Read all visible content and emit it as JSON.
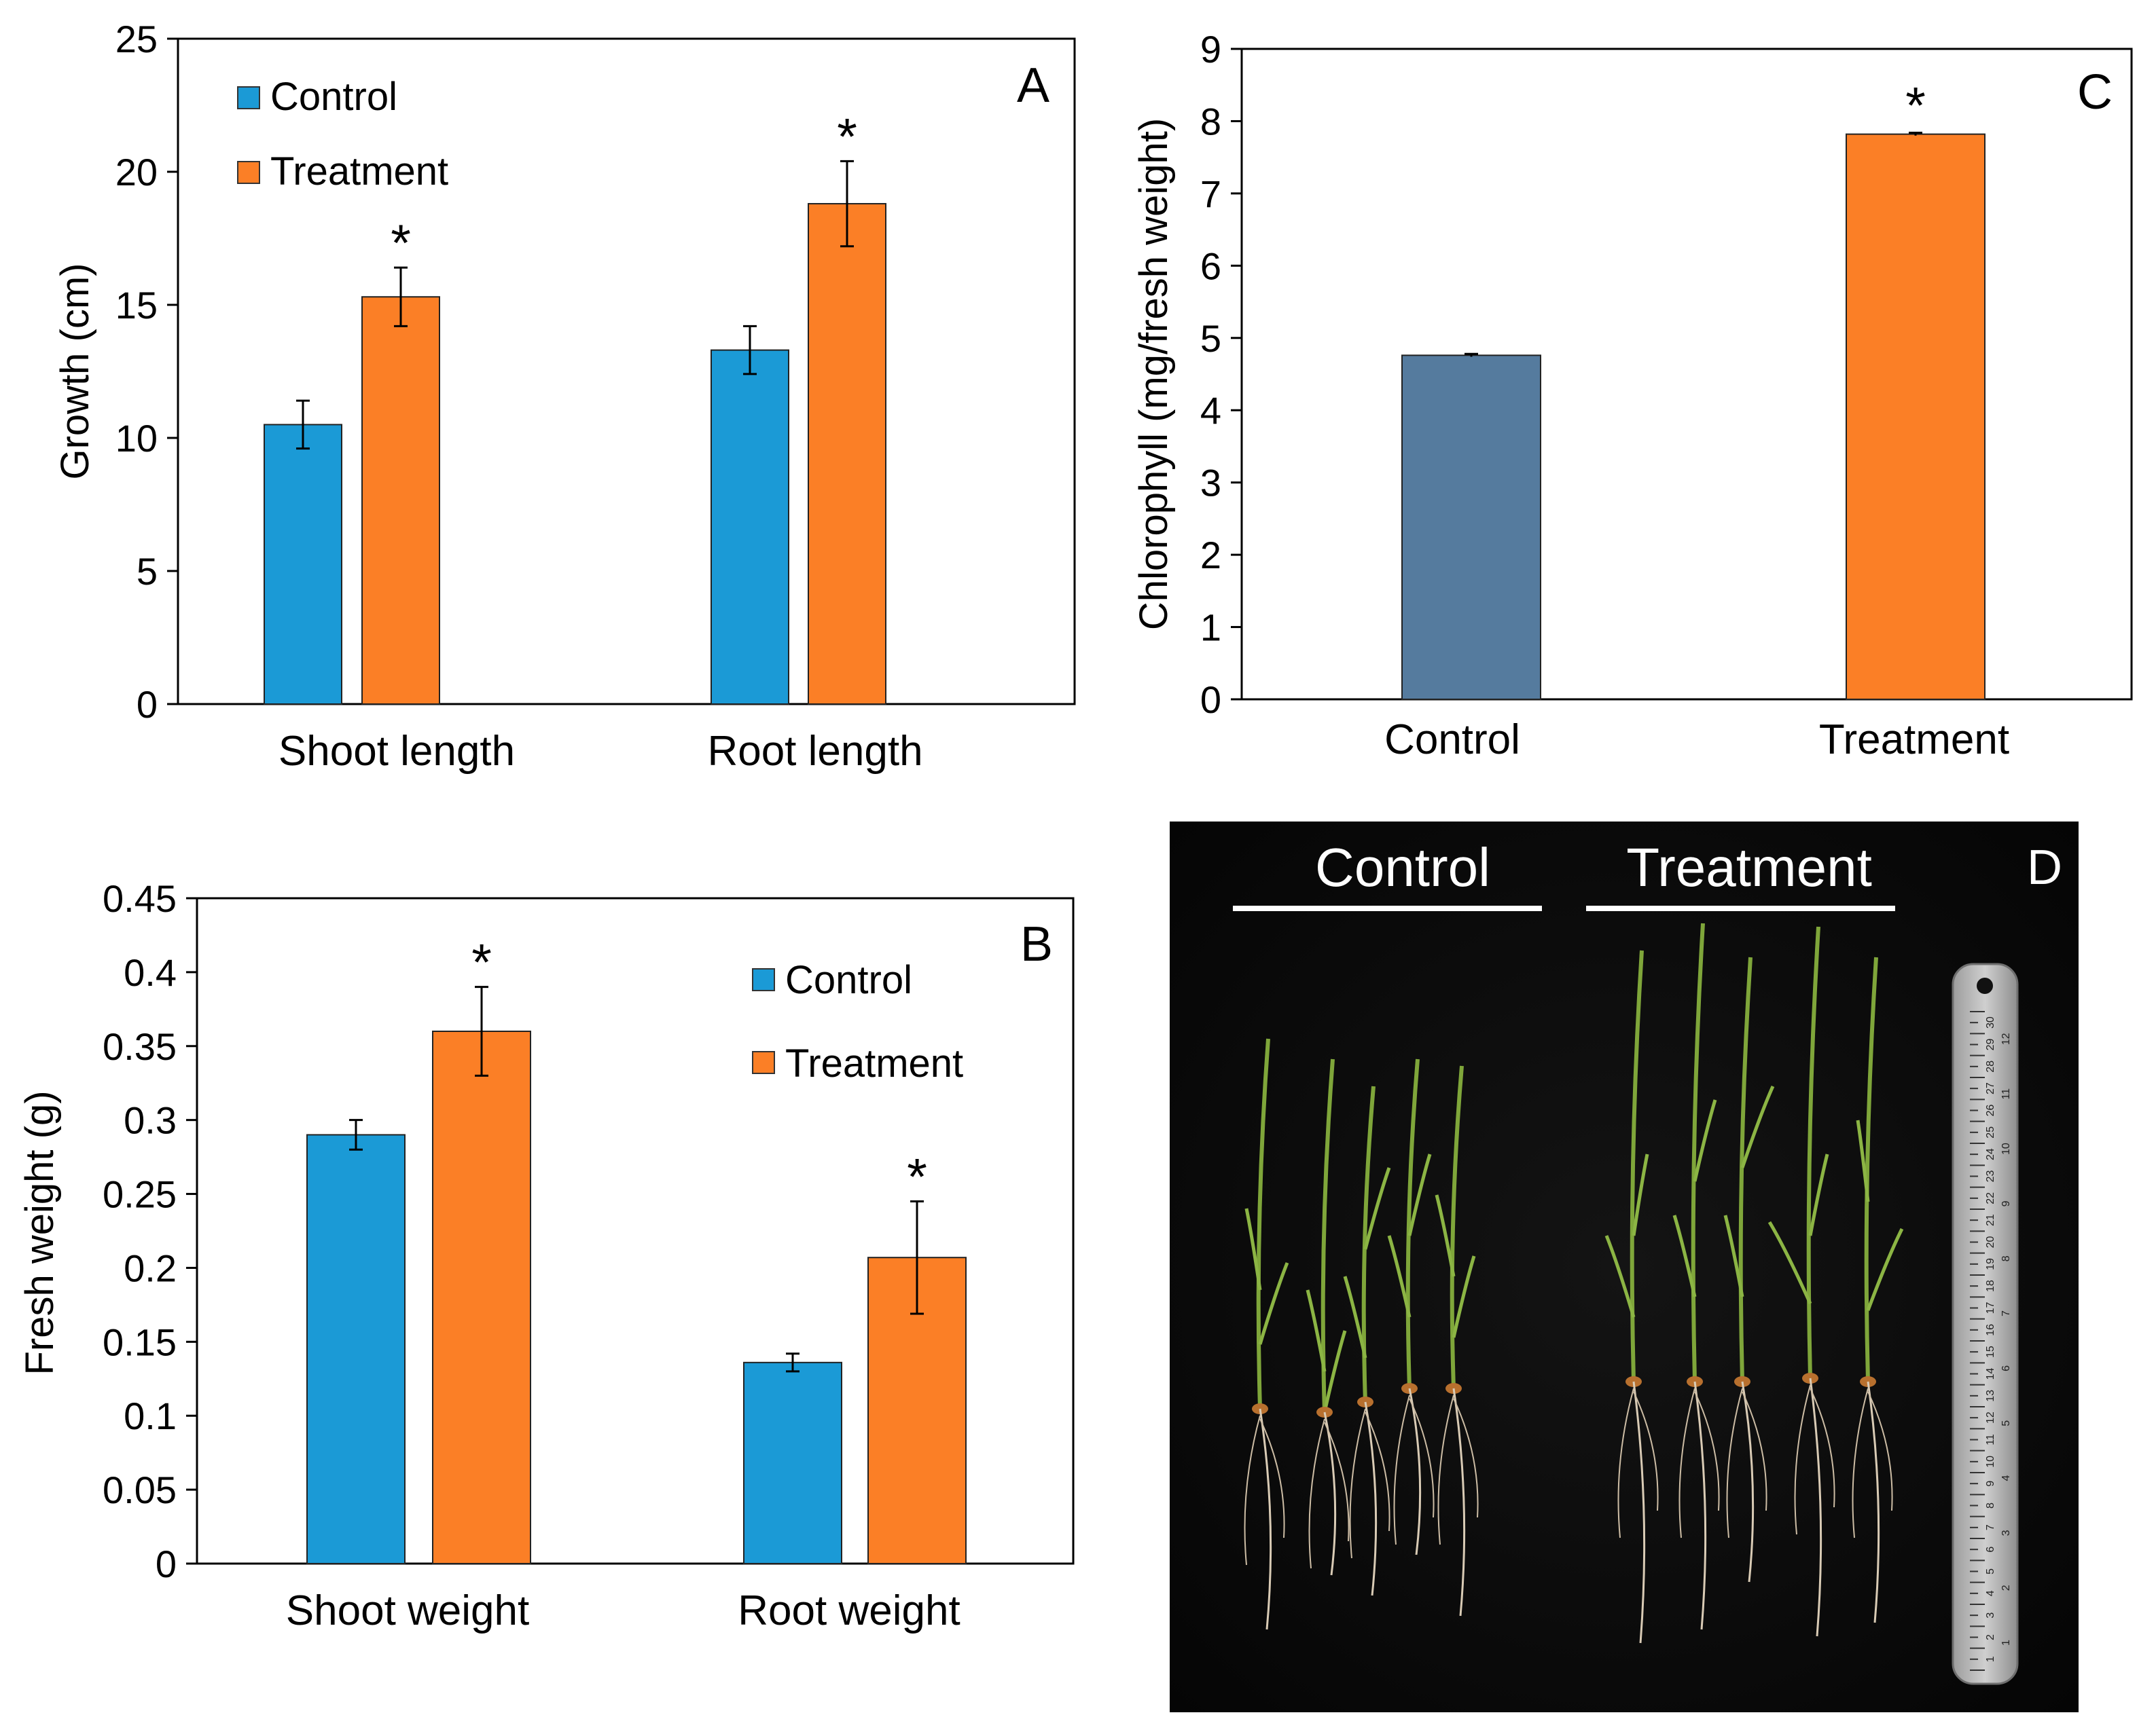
{
  "colors": {
    "control": "#1b9ad6",
    "treatment": "#fb7f26",
    "control_c": "#557b9e",
    "axis": "#000000"
  },
  "chart_data": [
    {
      "panel": "A",
      "type": "bar",
      "categories": [
        "Shoot length",
        "Root length"
      ],
      "series": [
        {
          "name": "Control",
          "values": [
            10.5,
            13.3
          ],
          "errors": [
            0.9,
            0.9
          ]
        },
        {
          "name": "Treatment",
          "values": [
            15.3,
            18.8
          ],
          "errors": [
            1.1,
            1.6
          ]
        }
      ],
      "significance": [
        [
          "",
          ""
        ],
        [
          "*",
          "*"
        ]
      ],
      "ylabel": "Growth (cm)",
      "ylim": [
        0,
        25
      ],
      "yticks": [
        "0",
        "5",
        "10",
        "15",
        "20",
        "25"
      ],
      "legend": "top-left"
    },
    {
      "panel": "B",
      "type": "bar",
      "categories": [
        "Shoot weight",
        "Root weight"
      ],
      "series": [
        {
          "name": "Control",
          "values": [
            0.29,
            0.136
          ],
          "errors": [
            0.01,
            0.006
          ]
        },
        {
          "name": "Treatment",
          "values": [
            0.36,
            0.207
          ],
          "errors": [
            0.03,
            0.038
          ]
        }
      ],
      "significance": [
        [
          "",
          ""
        ],
        [
          "*",
          "*"
        ]
      ],
      "ylabel": "Fresh weight (g)",
      "ylim": [
        0,
        0.45
      ],
      "yticks": [
        "0",
        "0.05",
        "0.1",
        "0.15",
        "0.2",
        "0.25",
        "0.3",
        "0.35",
        "0.4",
        "0.45"
      ],
      "legend": "top-right"
    },
    {
      "panel": "C",
      "type": "bar",
      "categories": [
        "Control",
        "Treatment"
      ],
      "values": [
        4.76,
        7.82
      ],
      "errors": [
        0.02,
        0.02
      ],
      "significance": [
        "",
        "*"
      ],
      "ylabel": "Chlorophyll (mg/fresh weight)",
      "ylim": [
        0,
        9
      ],
      "yticks": [
        "0",
        "1",
        "2",
        "3",
        "4",
        "5",
        "6",
        "7",
        "8",
        "9"
      ]
    }
  ],
  "photo": {
    "panel": "D",
    "labels": [
      "Control",
      "Treatment"
    ],
    "ruler_top": [
      "30",
      "29",
      "28",
      "27",
      "26",
      "25",
      "24",
      "23",
      "22",
      "21",
      "20",
      "19",
      "18",
      "17",
      "16",
      "15",
      "14",
      "13",
      "12",
      "11",
      "10",
      "9",
      "8",
      "7",
      "6",
      "5",
      "4",
      "3",
      "2",
      "1"
    ],
    "ruler_side": [
      "12",
      "11",
      "10",
      "9",
      "8",
      "7",
      "6",
      "5",
      "4",
      "3",
      "2",
      "1"
    ]
  }
}
